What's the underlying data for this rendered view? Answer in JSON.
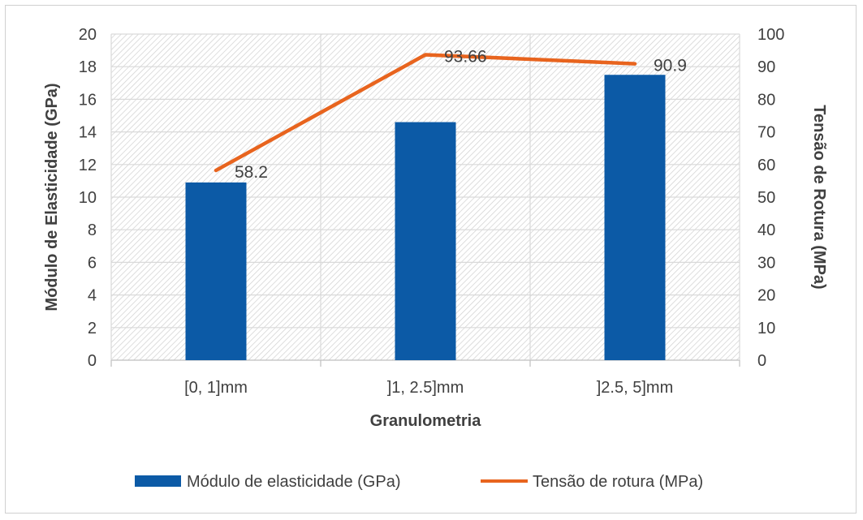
{
  "chart_data": {
    "type": "bar",
    "categories": [
      "[0, 1]mm",
      "]1, 2.5]mm",
      "]2.5, 5]mm"
    ],
    "series": [
      {
        "name": "Módulo de elasticidade (GPa)",
        "type": "bar",
        "axis": "left",
        "values": [
          10.9,
          14.6,
          17.5
        ],
        "color": "#0c5aa6"
      },
      {
        "name": "Tensão de rotura (MPa)",
        "type": "line",
        "axis": "right",
        "values": [
          58.2,
          93.66,
          90.9
        ],
        "labels": [
          "58.2",
          "93.66",
          "90.9"
        ],
        "color": "#e8641e"
      }
    ],
    "xlabel": "Granulometria",
    "ylabel": "Módulo  de Elasticidade (GPa)",
    "y2label": "Tensão de Rotura (MPa)",
    "ylim": [
      0,
      20
    ],
    "y2lim": [
      0,
      100
    ],
    "yticks": [
      "0",
      "2",
      "4",
      "6",
      "8",
      "10",
      "12",
      "14",
      "16",
      "18",
      "20"
    ],
    "y2ticks": [
      "0",
      "10",
      "20",
      "30",
      "40",
      "50",
      "60",
      "70",
      "80",
      "90",
      "100"
    ],
    "grid": true,
    "plot_background": "hatched",
    "legend_position": "bottom"
  }
}
